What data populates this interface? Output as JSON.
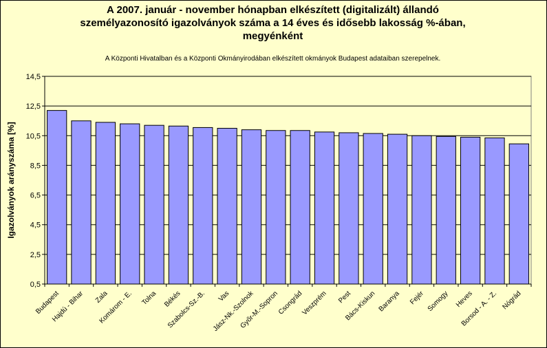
{
  "chart_data": {
    "type": "bar",
    "title_lines": [
      "A 2007. január - november hónapban elkészített (digitalizált) állandó",
      "személyazonosító igazolványok száma a 14 éves és idősebb lakosság %-ában,",
      "megyénként"
    ],
    "subtitle": "A  Központi Hivatalban és a Központi Okmányirodában elkészített  okmányok Budapest adataiban szerepelnek.",
    "ylabel": "Igazolványok arányszáma [%]",
    "xlabel": "",
    "ylim": [
      0.5,
      14.5
    ],
    "yticks": [
      0.5,
      2.5,
      4.5,
      6.5,
      8.5,
      10.5,
      12.5,
      14.5
    ],
    "ytick_labels": [
      "0,5",
      "2,5",
      "4,5",
      "6,5",
      "8,5",
      "10,5",
      "12,5",
      "14,5"
    ],
    "grid": true,
    "bar_color": "#9999ff",
    "background_color": "#ffffcc",
    "categories": [
      "Budapest",
      "Hajdú - Bihar",
      "Zala",
      "Komárom - E.",
      "Tolna",
      "Békés",
      "Szabolcs-Sz.-B.",
      "Vas",
      "Jász-Nk.-Szolnok",
      "Győr-M.-Sopron",
      "Csongrád",
      "Veszprém",
      "Pest",
      "Bács-Kiskun",
      "Baranya",
      "Fejér",
      "Somogy",
      "Heves",
      "Borsod - A. - Z.",
      "Nógrád"
    ],
    "values": [
      12.2,
      11.5,
      11.4,
      11.3,
      11.2,
      11.15,
      11.05,
      11.0,
      10.9,
      10.85,
      10.85,
      10.75,
      10.7,
      10.65,
      10.6,
      10.5,
      10.45,
      10.4,
      10.35,
      9.95
    ]
  }
}
